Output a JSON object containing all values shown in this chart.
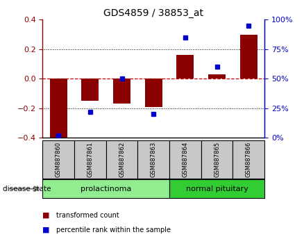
{
  "title": "GDS4859 / 38853_at",
  "samples": [
    "GSM887860",
    "GSM887861",
    "GSM887862",
    "GSM887863",
    "GSM887864",
    "GSM887865",
    "GSM887866"
  ],
  "red_bars": [
    -0.42,
    -0.15,
    -0.17,
    -0.19,
    0.16,
    0.03,
    0.3
  ],
  "blue_squares_pct": [
    2,
    22,
    50,
    20,
    85,
    60,
    95
  ],
  "group1_label": "prolactinoma",
  "group1_indices": [
    0,
    1,
    2,
    3
  ],
  "group2_label": "normal pituitary",
  "group2_indices": [
    4,
    5,
    6
  ],
  "disease_state_label": "disease state",
  "legend_red": "transformed count",
  "legend_blue": "percentile rank within the sample",
  "ylim_left": [
    -0.4,
    0.4
  ],
  "right_axis_ticks": [
    0,
    25,
    50,
    75,
    100
  ],
  "left_axis_ticks": [
    -0.4,
    -0.2,
    0.0,
    0.2,
    0.4
  ],
  "bar_color": "#8B0000",
  "square_color": "#0000CD",
  "group1_color": "#90EE90",
  "group2_color": "#32CD32",
  "label_bg_color": "#C8C8C8",
  "zero_line_color": "#CC0000",
  "grid_color": "#000000",
  "bar_width": 0.55
}
